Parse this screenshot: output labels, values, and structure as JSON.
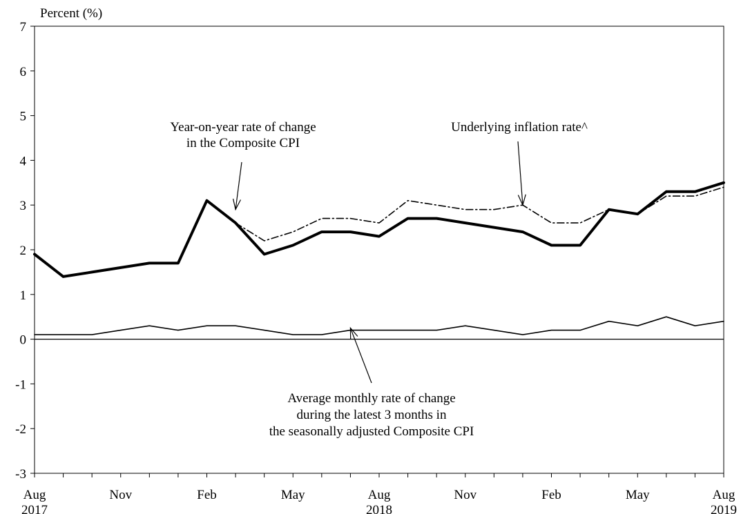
{
  "chart_data": {
    "type": "line",
    "ylabel": "Percent (%)",
    "ylim": [
      -3,
      7
    ],
    "yticks": [
      -3,
      -2,
      -1,
      0,
      1,
      2,
      3,
      4,
      5,
      6,
      7
    ],
    "x_start": "2017-08",
    "x_end": "2019-08",
    "x_tick_labels": [
      {
        "month": "2017-08",
        "label": "Aug",
        "year": "2017"
      },
      {
        "month": "2017-11",
        "label": "Nov",
        "year": ""
      },
      {
        "month": "2018-02",
        "label": "Feb",
        "year": ""
      },
      {
        "month": "2018-05",
        "label": "May",
        "year": ""
      },
      {
        "month": "2018-08",
        "label": "Aug",
        "year": "2018"
      },
      {
        "month": "2018-11",
        "label": "Nov",
        "year": ""
      },
      {
        "month": "2019-02",
        "label": "Feb",
        "year": ""
      },
      {
        "month": "2019-05",
        "label": "May",
        "year": ""
      },
      {
        "month": "2019-08",
        "label": "Aug",
        "year": "2019"
      }
    ],
    "x": [
      "2017-08",
      "2017-09",
      "2017-10",
      "2017-11",
      "2017-12",
      "2018-01",
      "2018-02",
      "2018-03",
      "2018-04",
      "2018-05",
      "2018-06",
      "2018-07",
      "2018-08",
      "2018-09",
      "2018-10",
      "2018-11",
      "2018-12",
      "2019-01",
      "2019-02",
      "2019-03",
      "2019-04",
      "2019-05",
      "2019-06",
      "2019-07",
      "2019-08"
    ],
    "series": [
      {
        "style": "thick",
        "values": [
          1.9,
          1.4,
          1.5,
          1.6,
          1.7,
          1.7,
          3.1,
          2.6,
          1.9,
          2.1,
          2.4,
          2.4,
          2.3,
          2.7,
          2.7,
          2.6,
          2.5,
          2.4,
          2.1,
          2.1,
          2.9,
          2.8,
          3.3,
          3.3,
          3.5
        ]
      },
      {
        "style": "dash-dot",
        "x": [
          "2018-03",
          "2018-04",
          "2018-05",
          "2018-06",
          "2018-07",
          "2018-08",
          "2018-09",
          "2018-10",
          "2018-11",
          "2018-12",
          "2019-01",
          "2019-02",
          "2019-03",
          "2019-04",
          "2019-05",
          "2019-06",
          "2019-07",
          "2019-08"
        ],
        "values": [
          2.6,
          2.2,
          2.4,
          2.7,
          2.7,
          2.6,
          3.1,
          3.0,
          2.9,
          2.9,
          3.0,
          2.6,
          2.6,
          2.9,
          2.8,
          3.2,
          3.2,
          3.4
        ]
      },
      {
        "style": "thin",
        "values": [
          0.1,
          0.1,
          0.1,
          0.2,
          0.3,
          0.2,
          0.3,
          0.3,
          0.2,
          0.1,
          0.1,
          0.2,
          0.2,
          0.2,
          0.2,
          0.3,
          0.2,
          0.1,
          0.2,
          0.2,
          0.4,
          0.3,
          0.5,
          0.3,
          0.4
        ]
      }
    ],
    "annotations": [
      {
        "lines": [
          "Year-on-year rate of change",
          "in the Composite CPI"
        ],
        "target": {
          "x": "2018-03",
          "y": 2.9
        }
      },
      {
        "lines": [
          "Underlying inflation rate^"
        ],
        "target": {
          "x": "2019-01",
          "y": 3.0
        }
      },
      {
        "lines": [
          "Average monthly rate of change",
          "during the latest 3 months in",
          "the seasonally adjusted Composite CPI"
        ],
        "target": {
          "x": "2018-07",
          "y": 0.25
        }
      }
    ]
  }
}
